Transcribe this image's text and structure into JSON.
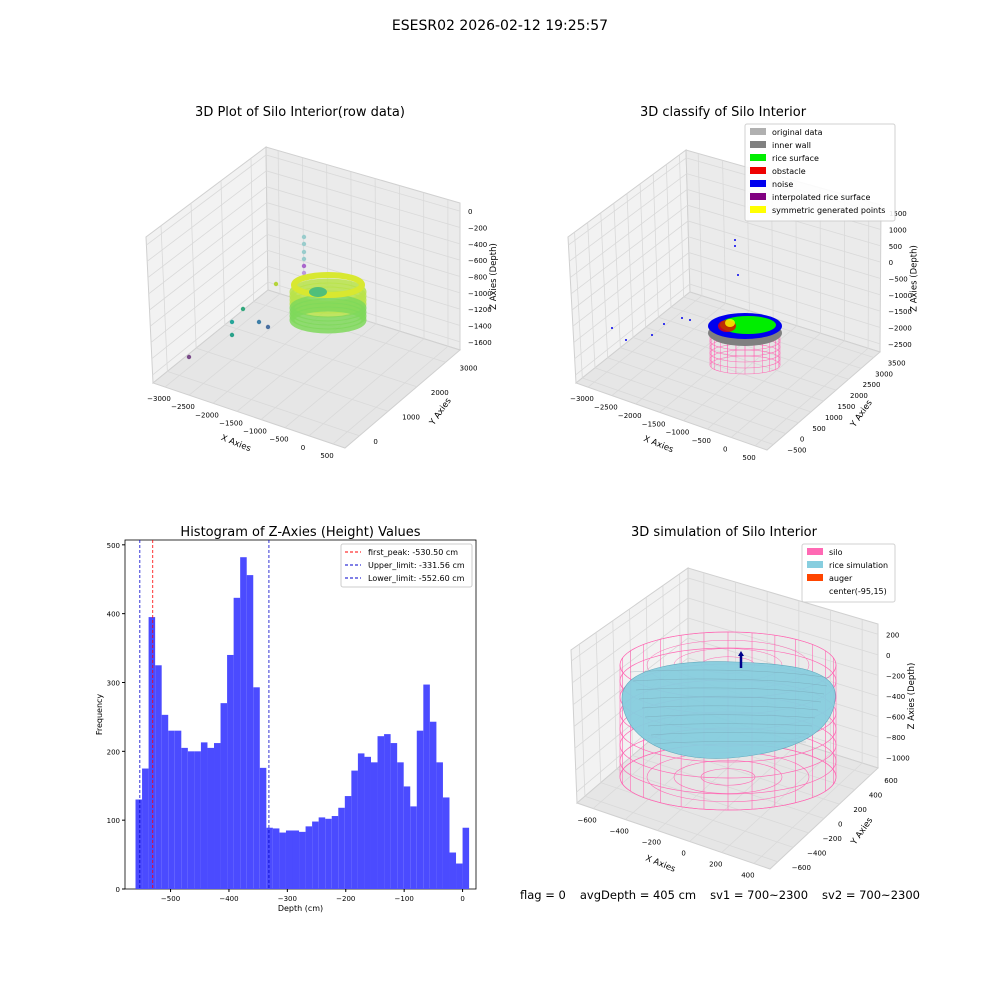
{
  "figure": {
    "title": "ESESR02 2026-02-12 19:25:57"
  },
  "colors": {
    "hist_bar": "#4b4bff",
    "first_peak": "#ff0000",
    "limit": "#0000cc",
    "grid": "#d9d9d9",
    "pane": "#f2f2f2",
    "silo": "#ff69b4",
    "rice": "#87cedf",
    "auger": "#ff4500",
    "noise": "#0000ee",
    "rice_surface": "#00ee00",
    "obstacle": "#ee0000",
    "inner_wall": "#808080",
    "original": "#b0b0b0",
    "interp": "#800080",
    "sym": "#ffff00"
  },
  "panel1": {
    "title": "3D Plot of Silo Interior(row data)",
    "xlabel": "X Axies",
    "ylabel": "Y Axies",
    "zlabel": "Z Axies (Depth)",
    "xticks": [
      "−3000",
      "−2500",
      "−2000",
      "−1500",
      "−1000",
      "−500",
      "0",
      "500"
    ],
    "yticks": [
      "0",
      "1000",
      "2000",
      "3000"
    ],
    "zticks": [
      "0",
      "−200",
      "−400",
      "−600",
      "−800",
      "−1000",
      "−1200",
      "−1400",
      "−1600"
    ]
  },
  "panel2": {
    "title": "3D classify of Silo Interior",
    "xlabel": "X Axies",
    "ylabel": "Y Axies",
    "zlabel": "Z Axies (Depth)",
    "xticks": [
      "−3000",
      "−2500",
      "−2000",
      "−1500",
      "−1000",
      "−500",
      "0",
      "500"
    ],
    "yticks": [
      "−500",
      "0",
      "500",
      "1000",
      "1500",
      "2000",
      "2500",
      "3000",
      "3500"
    ],
    "zticks": [
      "1500",
      "1000",
      "500",
      "0",
      "−500",
      "−1000",
      "−1500",
      "−2000",
      "−2500"
    ],
    "legend": [
      {
        "label": "original data",
        "color": "#b0b0b0"
      },
      {
        "label": "inner wall",
        "color": "#808080"
      },
      {
        "label": "rice surface",
        "color": "#00ee00"
      },
      {
        "label": "obstacle",
        "color": "#ee0000"
      },
      {
        "label": "noise",
        "color": "#0000ee"
      },
      {
        "label": "interpolated rice surface",
        "color": "#800080"
      },
      {
        "label": "symmetric generated points",
        "color": "#ffff00"
      }
    ]
  },
  "panel4": {
    "title": "3D simulation of Silo Interior",
    "xlabel": "X Axies",
    "ylabel": "Y Axies",
    "zlabel": "Z Axies (Depth)",
    "xticks": [
      "−600",
      "−400",
      "−200",
      "0",
      "200",
      "400"
    ],
    "yticks": [
      "−600",
      "−400",
      "−200",
      "0",
      "200",
      "400",
      "600"
    ],
    "zticks": [
      "200",
      "0",
      "−200",
      "−400",
      "−600",
      "−800",
      "−1000"
    ],
    "legend": [
      {
        "label": "silo",
        "color": "#ff69b4"
      },
      {
        "label": "rice simulation",
        "color": "#87cedf"
      },
      {
        "label": "auger",
        "color": "#ff4500"
      },
      {
        "label": "center(-95,15)",
        "color": ""
      }
    ]
  },
  "status": {
    "flag": "flag = 0",
    "avg": "avgDepth = 405 cm",
    "sv1": "sv1 = 700~2300",
    "sv2": "sv2 = 700~2300"
  },
  "chart_data": [
    {
      "type": "bar",
      "title": "Histogram of Z-Axies (Height) Values",
      "xlabel": "Depth (cm)",
      "ylabel": "Frequency",
      "xlim": [
        -578,
        23
      ],
      "ylim": [
        0,
        507
      ],
      "bin_start": -560,
      "bin_width": 11.2,
      "values": [
        130,
        175,
        395,
        325,
        253,
        230,
        230,
        205,
        200,
        200,
        213,
        205,
        212,
        270,
        340,
        423,
        482,
        456,
        293,
        176,
        89,
        88,
        82,
        85,
        85,
        83,
        91,
        98,
        104,
        102,
        106,
        118,
        135,
        172,
        197,
        192,
        184,
        222,
        225,
        212,
        184,
        149,
        120,
        230,
        297,
        243,
        184,
        133,
        53,
        37,
        89
      ],
      "xticks": [
        -500,
        -400,
        -300,
        -200,
        -100,
        0
      ],
      "xtick_labels": [
        "−500",
        "−400",
        "−300",
        "−200",
        "−100",
        "0"
      ],
      "yticks": [
        0,
        100,
        200,
        300,
        400,
        500
      ],
      "ytick_labels": [
        "0",
        "100",
        "200",
        "300",
        "400",
        "500"
      ],
      "lines": [
        {
          "label": "first_peak: -530.50 cm",
          "x": -530.5,
          "color": "#ff0000"
        },
        {
          "label": "Upper_limit: -331.56 cm",
          "x": -331.56,
          "color": "#0000cc"
        },
        {
          "label": "Lower_limit: -552.60 cm",
          "x": -552.6,
          "color": "#0000cc"
        }
      ]
    }
  ]
}
